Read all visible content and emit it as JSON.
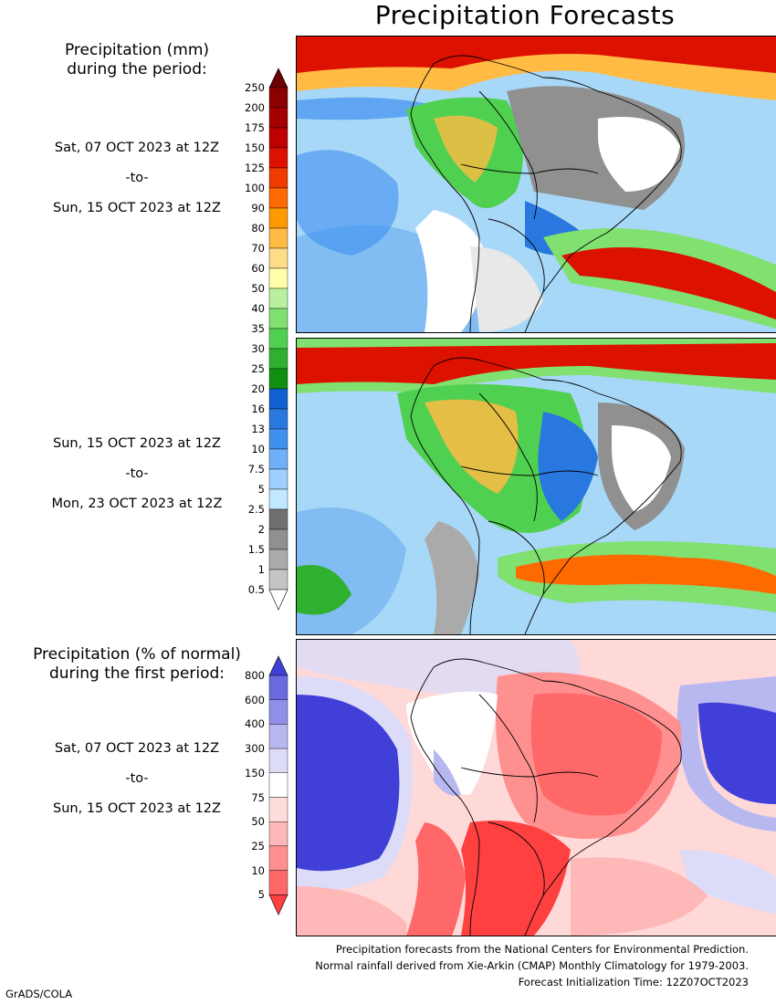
{
  "title": "Precipitation Forecasts",
  "legend_mm": {
    "heading_line1": "Precipitation (mm)",
    "heading_line2": "during the period:",
    "ticks": [
      "250",
      "200",
      "175",
      "150",
      "125",
      "100",
      "90",
      "80",
      "70",
      "60",
      "50",
      "40",
      "35",
      "30",
      "25",
      "20",
      "16",
      "13",
      "10",
      "7.5",
      "5",
      "2.5",
      "2",
      "1.5",
      "1",
      "0.5"
    ],
    "colors": [
      "#6b0000",
      "#8b0000",
      "#a40000",
      "#c00000",
      "#dd1100",
      "#f03a00",
      "#ff6a00",
      "#ff9900",
      "#ffbb44",
      "#ffdd88",
      "#ffffaa",
      "#b8f0a0",
      "#80e070",
      "#50d050",
      "#30b030",
      "#109010",
      "#1060d0",
      "#2878e0",
      "#4090f0",
      "#70b0f8",
      "#a0d0ff",
      "#c0e8ff",
      "#707070",
      "#909090",
      "#aaaaaa",
      "#c4c4c4",
      "#ffffff"
    ]
  },
  "period1": {
    "start": "Sat, 07 OCT 2023 at 12Z",
    "sep": "-to-",
    "end": "Sun, 15 OCT 2023 at 12Z"
  },
  "period2": {
    "start": "Sun, 15 OCT 2023 at 12Z",
    "sep": "-to-",
    "end": "Mon, 23 OCT 2023 at 12Z"
  },
  "legend_pct": {
    "heading_line1": "Precipitation (% of normal)",
    "heading_line2": "during the first period:",
    "ticks": [
      "800",
      "600",
      "400",
      "300",
      "150",
      "75",
      "50",
      "25",
      "10",
      "5"
    ],
    "colors": [
      "#4040d8",
      "#6a6ae0",
      "#9090e8",
      "#b8b8f0",
      "#dcdcf8",
      "#ffffff",
      "#ffdcdc",
      "#ffb8b8",
      "#ff9090",
      "#ff6868",
      "#ff4040"
    ]
  },
  "period3": {
    "start": "Sat, 07 OCT 2023 at 12Z",
    "sep": "-to-",
    "end": "Sun, 15 OCT 2023 at 12Z"
  },
  "footer": {
    "line1": "Precipitation forecasts from the National Centers for Environmental Prediction.",
    "line2": "Normal rainfall derived from Xie-Arkin (CMAP) Monthly Climatology for 1979-2003.",
    "line3": "Forecast Initialization Time: 12Z07OCT2023"
  },
  "credit": "GrADS/COLA"
}
